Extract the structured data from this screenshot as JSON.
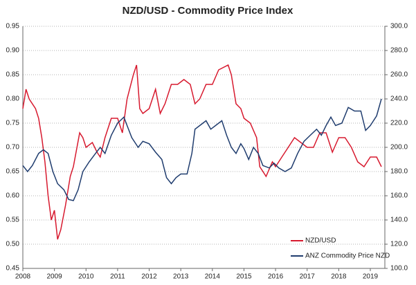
{
  "chart_data": {
    "type": "line",
    "title": "NZD/USD - Commodity Price Index",
    "xlim": [
      2008,
      2019.46
    ],
    "xticks": [
      2008,
      2009,
      2010,
      2011,
      2012,
      2013,
      2014,
      2015,
      2016,
      2017,
      2018,
      2019
    ],
    "ylim": [
      0.45,
      0.95
    ],
    "yticks": [
      {
        "value": 0.45,
        "label": "0.45"
      },
      {
        "value": 0.5,
        "label": "0.50"
      },
      {
        "value": 0.55,
        "label": "0.55"
      },
      {
        "value": 0.6,
        "label": "0.60"
      },
      {
        "value": 0.65,
        "label": "0.65"
      },
      {
        "value": 0.7,
        "label": "0.70"
      },
      {
        "value": 0.75,
        "label": "0.75"
      },
      {
        "value": 0.8,
        "label": "0.80"
      },
      {
        "value": 0.85,
        "label": "0.85"
      },
      {
        "value": 0.9,
        "label": "0.90"
      },
      {
        "value": 0.95,
        "label": "0.95"
      }
    ],
    "y2lim": [
      100,
      300
    ],
    "y2ticks": [
      {
        "value": 100,
        "label": "100.0"
      },
      {
        "value": 120,
        "label": "120.0"
      },
      {
        "value": 140,
        "label": "140.0"
      },
      {
        "value": 160,
        "label": "160.0"
      },
      {
        "value": 180,
        "label": "180.0"
      },
      {
        "value": 200,
        "label": "200.0"
      },
      {
        "value": 220,
        "label": "220.0"
      },
      {
        "value": 240,
        "label": "240.0"
      },
      {
        "value": 260,
        "label": "260.0"
      },
      {
        "value": 280,
        "label": "280.0"
      },
      {
        "value": 300,
        "label": "300.0"
      }
    ],
    "grid": true,
    "legend": "lower right",
    "series": [
      {
        "name": "NZD/USD",
        "color": "#d7192e",
        "axis": "y",
        "x": [
          2008.0,
          2008.1,
          2008.2,
          2008.4,
          2008.5,
          2008.6,
          2008.7,
          2008.8,
          2008.9,
          2009.0,
          2009.1,
          2009.2,
          2009.35,
          2009.5,
          2009.6,
          2009.8,
          2009.9,
          2010.0,
          2010.2,
          2010.35,
          2010.45,
          2010.6,
          2010.8,
          2011.0,
          2011.15,
          2011.3,
          2011.5,
          2011.6,
          2011.7,
          2011.8,
          2012.0,
          2012.2,
          2012.35,
          2012.5,
          2012.7,
          2012.9,
          2013.1,
          2013.3,
          2013.45,
          2013.6,
          2013.8,
          2014.0,
          2014.2,
          2014.5,
          2014.6,
          2014.75,
          2014.9,
          2015.0,
          2015.2,
          2015.4,
          2015.5,
          2015.7,
          2015.9,
          2016.0,
          2016.2,
          2016.4,
          2016.6,
          2016.8,
          2017.0,
          2017.2,
          2017.4,
          2017.6,
          2017.8,
          2018.0,
          2018.2,
          2018.4,
          2018.6,
          2018.8,
          2019.0,
          2019.2,
          2019.35
        ],
        "values": [
          0.78,
          0.82,
          0.8,
          0.78,
          0.76,
          0.72,
          0.67,
          0.6,
          0.55,
          0.57,
          0.51,
          0.53,
          0.58,
          0.64,
          0.66,
          0.73,
          0.72,
          0.7,
          0.71,
          0.69,
          0.68,
          0.72,
          0.76,
          0.76,
          0.73,
          0.8,
          0.85,
          0.87,
          0.78,
          0.77,
          0.78,
          0.82,
          0.77,
          0.79,
          0.83,
          0.83,
          0.84,
          0.83,
          0.79,
          0.8,
          0.83,
          0.83,
          0.86,
          0.87,
          0.85,
          0.79,
          0.78,
          0.76,
          0.75,
          0.72,
          0.66,
          0.64,
          0.67,
          0.66,
          0.68,
          0.7,
          0.72,
          0.71,
          0.7,
          0.7,
          0.73,
          0.73,
          0.69,
          0.72,
          0.72,
          0.7,
          0.67,
          0.66,
          0.68,
          0.68,
          0.66
        ]
      },
      {
        "name": "ANZ Commodity Price NZD",
        "color": "#1f3c6e",
        "axis": "y2",
        "x": [
          2008.0,
          2008.15,
          2008.3,
          2008.5,
          2008.65,
          2008.8,
          2008.95,
          2009.1,
          2009.3,
          2009.45,
          2009.6,
          2009.75,
          2009.9,
          2010.1,
          2010.3,
          2010.45,
          2010.6,
          2010.8,
          2011.0,
          2011.2,
          2011.3,
          2011.45,
          2011.65,
          2011.8,
          2012.0,
          2012.2,
          2012.4,
          2012.55,
          2012.7,
          2012.85,
          2013.0,
          2013.2,
          2013.35,
          2013.45,
          2013.6,
          2013.8,
          2013.95,
          2014.1,
          2014.3,
          2014.45,
          2014.6,
          2014.75,
          2014.9,
          2015.0,
          2015.15,
          2015.3,
          2015.45,
          2015.6,
          2015.8,
          2015.95,
          2016.1,
          2016.3,
          2016.5,
          2016.7,
          2016.9,
          2017.1,
          2017.3,
          2017.45,
          2017.6,
          2017.75,
          2017.9,
          2018.1,
          2018.3,
          2018.5,
          2018.7,
          2018.85,
          2019.0,
          2019.2,
          2019.35
        ],
        "values": [
          185,
          180,
          185,
          195,
          198,
          195,
          180,
          170,
          165,
          157,
          156,
          165,
          180,
          188,
          195,
          200,
          195,
          210,
          220,
          225,
          218,
          208,
          200,
          205,
          203,
          196,
          190,
          175,
          170,
          175,
          178,
          178,
          195,
          215,
          218,
          222,
          215,
          218,
          222,
          210,
          200,
          195,
          203,
          199,
          190,
          200,
          195,
          185,
          183,
          187,
          183,
          180,
          183,
          195,
          205,
          210,
          215,
          210,
          218,
          225,
          218,
          220,
          233,
          230,
          230,
          214,
          218,
          226,
          240
        ]
      }
    ]
  }
}
